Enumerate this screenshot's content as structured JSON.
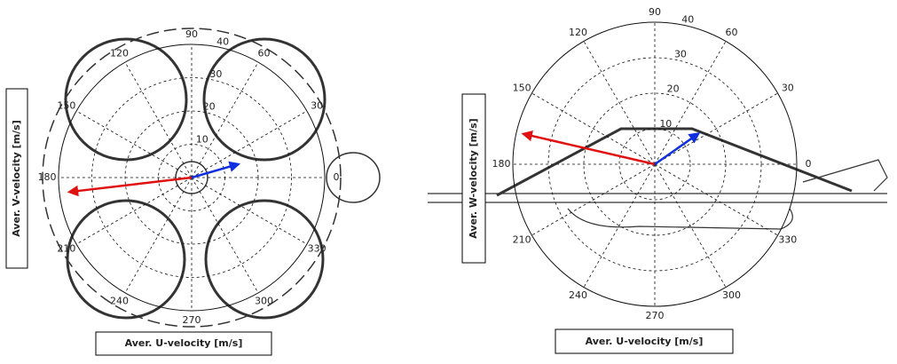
{
  "chart_data": [
    {
      "type": "polar",
      "x_label": "Aver. U-velocity [m/s]",
      "y_label": "Aver. V-velocity [m/s]",
      "angle_ticks": [
        0,
        30,
        60,
        90,
        120,
        150,
        180,
        210,
        240,
        270,
        300,
        330
      ],
      "rlim": [
        0,
        40
      ],
      "rticks": [
        10,
        20,
        30,
        40
      ],
      "vectors": [
        {
          "color": "#e01010",
          "angle": 186.7,
          "magnitude": 37
        },
        {
          "color": "#1030e0",
          "angle": 16,
          "magnitude": 14.6
        }
      ]
    },
    {
      "type": "polar",
      "x_label": "Aver. U-velocity [m/s]",
      "y_label": "Aver. W-velocity [m/s]",
      "angle_ticks": [
        0,
        30,
        60,
        90,
        120,
        150,
        180,
        210,
        240,
        270,
        300,
        330
      ],
      "rlim": [
        0,
        40
      ],
      "rticks": [
        10,
        20,
        30,
        40
      ],
      "vectors": [
        {
          "color": "#e01010",
          "angle": 167,
          "magnitude": 38
        },
        {
          "color": "#1030e0",
          "angle": 35,
          "magnitude": 15
        }
      ]
    }
  ]
}
